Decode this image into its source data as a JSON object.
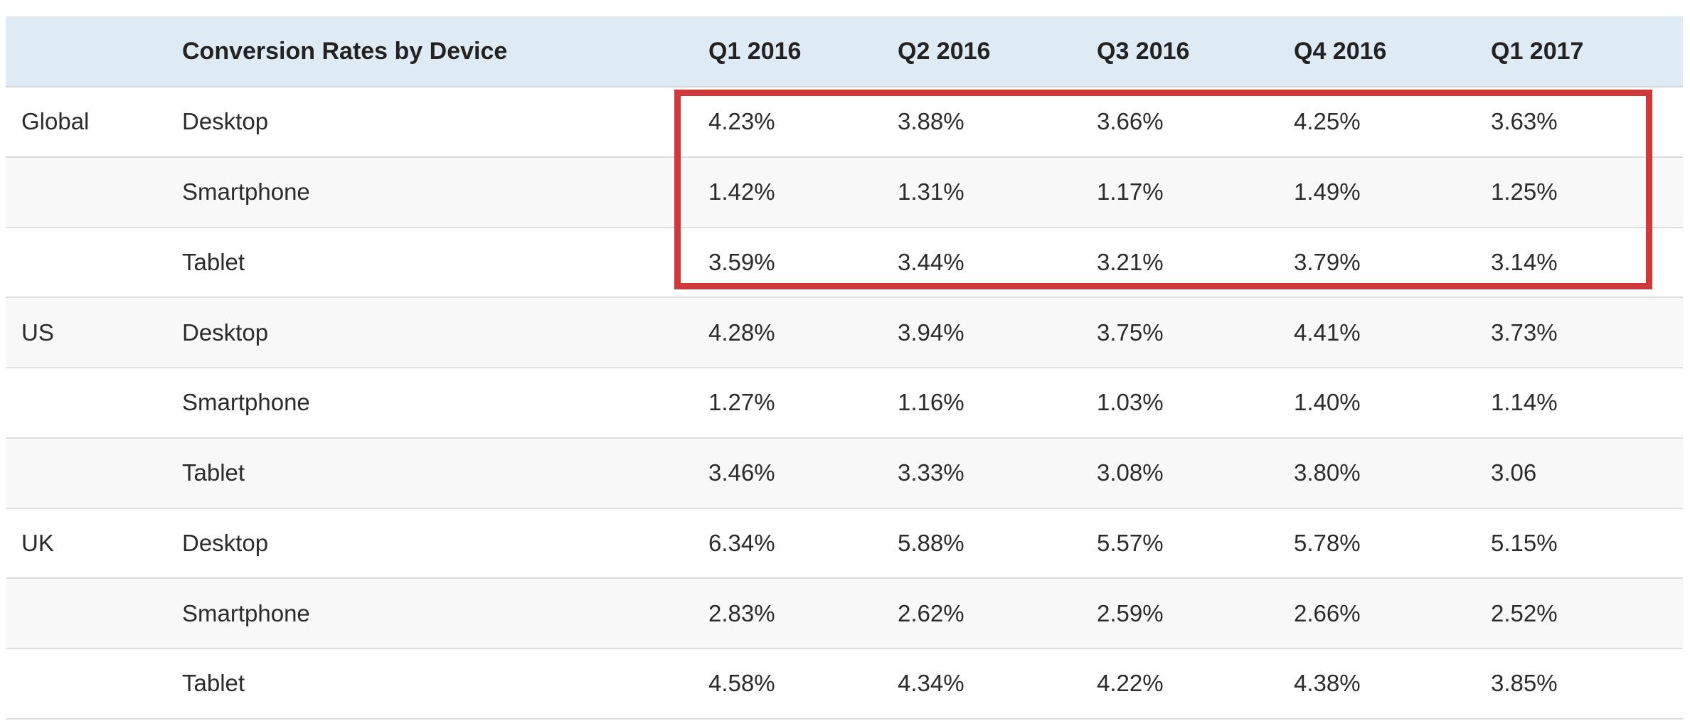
{
  "chart_data": {
    "type": "table",
    "columns": [
      "",
      "Conversion Rates by Device",
      "Q1 2016",
      "Q2 2016",
      "Q3 2016",
      "Q4 2016",
      "Q1 2017"
    ],
    "rows": [
      {
        "region": "Global",
        "device": "Desktop",
        "values": [
          "4.23%",
          "3.88%",
          "3.66%",
          "4.25%",
          "3.63%"
        ]
      },
      {
        "region": "",
        "device": "Smartphone",
        "values": [
          "1.42%",
          "1.31%",
          "1.17%",
          "1.49%",
          "1.25%"
        ]
      },
      {
        "region": "",
        "device": "Tablet",
        "values": [
          "3.59%",
          "3.44%",
          "3.21%",
          "3.79%",
          "3.14%"
        ]
      },
      {
        "region": "US",
        "device": "Desktop",
        "values": [
          "4.28%",
          "3.94%",
          "3.75%",
          "4.41%",
          "3.73%"
        ]
      },
      {
        "region": "",
        "device": "Smartphone",
        "values": [
          "1.27%",
          "1.16%",
          "1.03%",
          "1.40%",
          "1.14%"
        ]
      },
      {
        "region": "",
        "device": "Tablet",
        "values": [
          "3.46%",
          "3.33%",
          "3.08%",
          "3.80%",
          "3.06"
        ]
      },
      {
        "region": "UK",
        "device": "Desktop",
        "values": [
          "6.34%",
          "5.88%",
          "5.57%",
          "5.78%",
          "5.15%"
        ]
      },
      {
        "region": "",
        "device": "Smartphone",
        "values": [
          "2.83%",
          "2.62%",
          "2.59%",
          "2.66%",
          "2.52%"
        ]
      },
      {
        "region": "",
        "device": "Tablet",
        "values": [
          "4.58%",
          "4.34%",
          "4.22%",
          "4.38%",
          "3.85%"
        ]
      }
    ],
    "highlight": {
      "rows": [
        "Global"
      ],
      "color": "#d0393b"
    }
  },
  "colors": {
    "header_bg": "#deebf4",
    "highlight_border": "#d0393b",
    "alt_row_bg": "#f8f8f8"
  }
}
